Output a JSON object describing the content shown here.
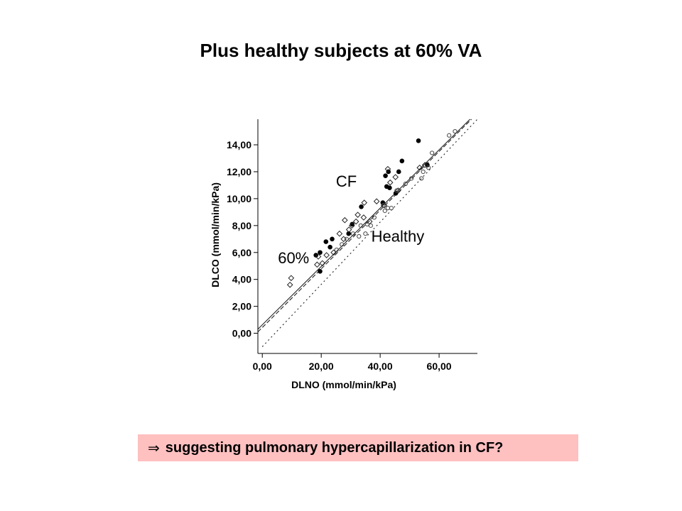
{
  "title": "Plus healthy subjects at 60% VA",
  "callout": {
    "arrow_glyph": "⇒",
    "text": "suggesting pulmonary hypercapillarization in CF?"
  },
  "chart_data": {
    "type": "scatter",
    "xlabel": "DLNO (mmol/min/kPa)",
    "ylabel": "DLCO (mmol/min/kPa)",
    "xlim": [
      -1.5,
      73
    ],
    "ylim": [
      -1.5,
      15.9
    ],
    "x_ticks": [
      0,
      20,
      40,
      60
    ],
    "x_tick_labels": [
      "0,00",
      "20,00",
      "40,00",
      "60,00"
    ],
    "y_ticks": [
      0,
      2,
      4,
      6,
      8,
      10,
      12,
      14
    ],
    "y_tick_labels": [
      "0,00",
      "2,00",
      "4,00",
      "6,00",
      "8,00",
      "10,00",
      "12,00",
      "14,00"
    ],
    "grid": false,
    "annotations": [
      {
        "text": "CF",
        "x": 25,
        "y": 10.9
      },
      {
        "text": "Healthy",
        "x": 37,
        "y": 6.8
      },
      {
        "text": "60%",
        "x": 5.3,
        "y": 5.2
      }
    ],
    "series": [
      {
        "marker": "filled-circle",
        "points": [
          [
            18.2,
            5.8
          ],
          [
            19.6,
            4.6
          ],
          [
            19.6,
            6.0
          ],
          [
            21.6,
            6.8
          ],
          [
            23.0,
            6.4
          ],
          [
            23.7,
            7.0
          ],
          [
            29.3,
            7.4
          ],
          [
            30.5,
            8.1
          ],
          [
            33.6,
            9.4
          ],
          [
            40.9,
            9.7
          ],
          [
            41.8,
            11.7
          ],
          [
            42.2,
            10.9
          ],
          [
            42.8,
            12.0
          ],
          [
            43.2,
            10.8
          ],
          [
            45.3,
            10.4
          ],
          [
            46.3,
            12.0
          ],
          [
            47.4,
            12.8
          ],
          [
            53.0,
            14.3
          ],
          [
            56.0,
            12.5
          ]
        ]
      },
      {
        "marker": "open-diamond",
        "points": [
          [
            9.4,
            3.6
          ],
          [
            9.8,
            4.1
          ],
          [
            18.6,
            5.1
          ],
          [
            19.0,
            5.7
          ],
          [
            20.4,
            5.2
          ],
          [
            21.8,
            5.8
          ],
          [
            24.2,
            6.0
          ],
          [
            26.2,
            7.4
          ],
          [
            27.6,
            7.0
          ],
          [
            28.0,
            8.4
          ],
          [
            29.4,
            7.7
          ],
          [
            30.4,
            8.0
          ],
          [
            31.8,
            8.3
          ],
          [
            32.4,
            8.8
          ],
          [
            34.4,
            8.6
          ],
          [
            34.6,
            9.7
          ],
          [
            36.4,
            8.3
          ],
          [
            38.8,
            9.8
          ],
          [
            41.4,
            9.5
          ],
          [
            42.6,
            12.2
          ],
          [
            43.4,
            11.2
          ],
          [
            45.2,
            11.6
          ],
          [
            46.1,
            10.6
          ],
          [
            53.4,
            12.3
          ],
          [
            55.2,
            12.5
          ]
        ]
      },
      {
        "marker": "open-circle",
        "points": [
          [
            25.2,
            6.2
          ],
          [
            27.0,
            6.6
          ],
          [
            28.6,
            7.0
          ],
          [
            30.8,
            7.4
          ],
          [
            32.8,
            7.2
          ],
          [
            33.4,
            8.0
          ],
          [
            35.0,
            7.4
          ],
          [
            35.6,
            8.1
          ],
          [
            36.8,
            8.0
          ],
          [
            38.0,
            8.6
          ],
          [
            41.0,
            9.5
          ],
          [
            41.6,
            9.1
          ],
          [
            42.6,
            9.3
          ],
          [
            43.8,
            9.3
          ],
          [
            45.6,
            10.6
          ],
          [
            48.6,
            11.1
          ],
          [
            50.6,
            11.5
          ],
          [
            54.0,
            11.5
          ],
          [
            54.6,
            12.0
          ],
          [
            56.4,
            12.3
          ],
          [
            57.6,
            13.4
          ],
          [
            63.4,
            14.7
          ],
          [
            65.4,
            15.0
          ]
        ]
      }
    ],
    "fit_lines": [
      {
        "style": "solid",
        "from": [
          -1.5,
          0.3
        ],
        "to": [
          70.5,
          15.9
        ]
      },
      {
        "style": "dashed",
        "from": [
          -1.5,
          0.1
        ],
        "to": [
          71.0,
          15.9
        ]
      },
      {
        "style": "dotted",
        "from": [
          0.0,
          -1.0
        ],
        "to": [
          73.0,
          15.9
        ]
      }
    ]
  }
}
